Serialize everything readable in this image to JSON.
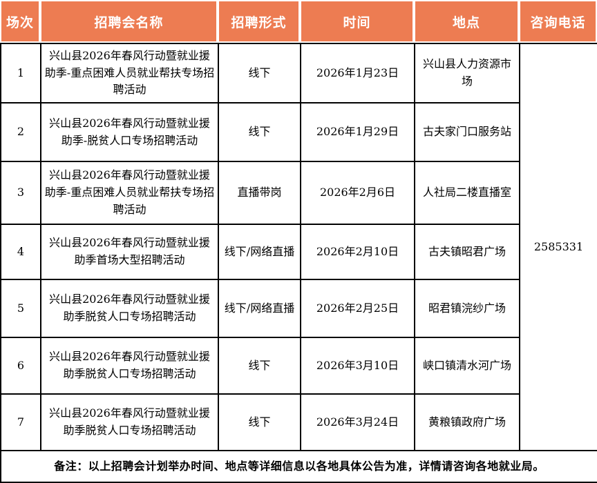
{
  "colors": {
    "header_bg": "#ED7C52",
    "header_text": "#FFFFFF",
    "body_border": "#000000",
    "note_bg": "#FDF7F3"
  },
  "table": {
    "headers": {
      "session": "场次",
      "fair_name": "招聘会名称",
      "format": "招聘形式",
      "time": "时间",
      "location": "地点",
      "phone": "咨询电话"
    },
    "rows": [
      {
        "no": "1",
        "name": "兴山县2026年春风行动暨就业援助季-重点困难人员就业帮扶专场招聘活动",
        "format": "线下",
        "date": "2026年1月23日",
        "location": "兴山县人力资源市场"
      },
      {
        "no": "2",
        "name": "兴山县2026年春风行动暨就业援助季-脱贫人口专场招聘活动",
        "format": "线下",
        "date": "2026年1月29日",
        "location": "古夫家门口服务站"
      },
      {
        "no": "3",
        "name": "兴山县2026年春风行动暨就业援助季-重点困难人员就业帮扶专场招聘活动",
        "format": "直播带岗",
        "date": "2026年2月6日",
        "location": "人社局二楼直播室"
      },
      {
        "no": "4",
        "name": "兴山县2026年春风行动暨就业援助季首场大型招聘活动",
        "format": "线下/网络直播",
        "date": "2026年2月10日",
        "location": "古夫镇昭君广场"
      },
      {
        "no": "5",
        "name": "兴山县2026年春风行动暨就业援助季脱贫人口专场招聘活动",
        "format": "线下/网络直播",
        "date": "2026年2月25日",
        "location": "昭君镇浣纱广场"
      },
      {
        "no": "6",
        "name": "兴山县2026年春风行动暨就业援助季脱贫人口专场招聘活动",
        "format": "线下",
        "date": "2026年3月10日",
        "location": "峡口镇清水河广场"
      },
      {
        "no": "7",
        "name": "兴山县2026年春风行动暨就业援助季脱贫人口专场招聘活动",
        "format": "线下",
        "date": "2026年3月24日",
        "location": "黄粮镇政府广场"
      }
    ],
    "phone": "2585331",
    "note": "备注：以上招聘会计划举办时间、地点等详细信息以各地具体公告为准，详情请咨询各地就业局。"
  }
}
